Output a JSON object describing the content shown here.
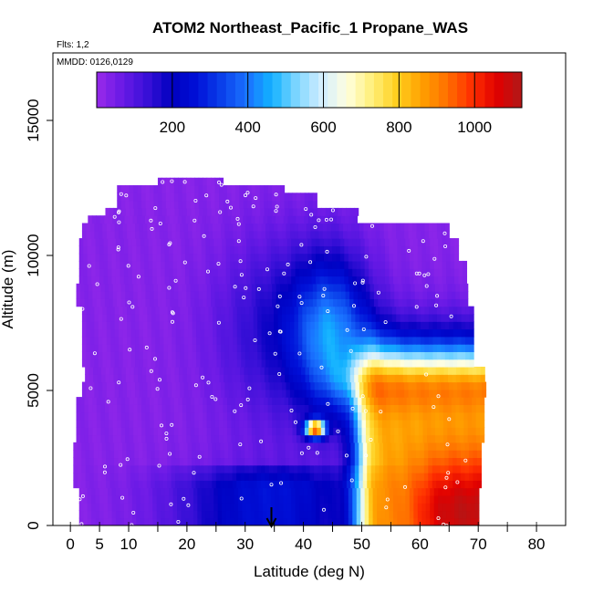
{
  "chart_data": {
    "type": "heatmap",
    "title": "ATOM2 Northeast_Pacific_1 Propane_WAS",
    "flights_label": "Flts: 1,2",
    "dates_label": "MMDD: 0126,0129",
    "xlabel": "Latitude (deg N)",
    "ylabel": "Altitude (m)",
    "xlim": [
      -3,
      85
    ],
    "ylim": [
      0,
      17500
    ],
    "x_ticks": [
      0,
      5,
      10,
      20,
      30,
      40,
      50,
      60,
      70,
      80
    ],
    "x_minor_ticks": [
      15,
      25,
      35,
      45,
      55,
      65,
      75
    ],
    "y_ticks": [
      0,
      5000,
      10000,
      15000
    ],
    "colorbar": {
      "min": 0,
      "max": 1125,
      "ticks": [
        200,
        400,
        600,
        800,
        1000
      ],
      "colors": [
        "#9a2aea",
        "#6a1ae6",
        "#3a10d8",
        "#0000c0",
        "#0010d8",
        "#0a40ea",
        "#1a72ff",
        "#12b2ff",
        "#7fd6ff",
        "#d2eeff",
        "#ffffe0",
        "#fff07a",
        "#ffd020",
        "#ffa000",
        "#ff7000",
        "#ff3000",
        "#e00000",
        "#b01818"
      ]
    },
    "arrow_latitude": 34.5,
    "grid": false,
    "legend_position": "none"
  }
}
